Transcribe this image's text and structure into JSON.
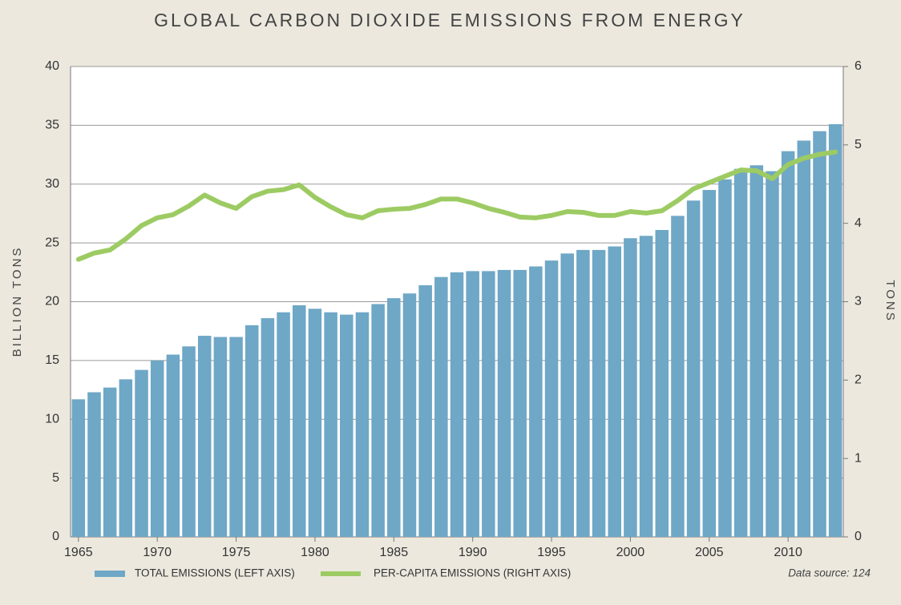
{
  "chart_data": {
    "type": "bar",
    "title": "GLOBAL CARBON DIOXIDE EMISSIONS FROM ENERGY",
    "y_label": "BILLION TONS",
    "y2_label": "TONS",
    "source": "Data source: 124",
    "x": [
      1965,
      1966,
      1967,
      1968,
      1969,
      1970,
      1971,
      1972,
      1973,
      1974,
      1975,
      1976,
      1977,
      1978,
      1979,
      1980,
      1981,
      1982,
      1983,
      1984,
      1985,
      1986,
      1987,
      1988,
      1989,
      1990,
      1991,
      1992,
      1993,
      1994,
      1995,
      1996,
      1997,
      1998,
      1999,
      2000,
      2001,
      2002,
      2003,
      2004,
      2005,
      2006,
      2007,
      2008,
      2009,
      2010,
      2011,
      2012,
      2013
    ],
    "xlim": [
      1964.5,
      2013.5
    ],
    "xticks": [
      1965,
      1970,
      1975,
      1980,
      1985,
      1990,
      1995,
      2000,
      2005,
      2010
    ],
    "ylim": [
      0,
      40
    ],
    "yticks": [
      0,
      5,
      10,
      15,
      20,
      25,
      30,
      35,
      40
    ],
    "y2lim": [
      0,
      6
    ],
    "y2ticks": [
      0,
      1,
      2,
      3,
      4,
      5,
      6
    ],
    "grid": true,
    "legend": "bottom",
    "series": [
      {
        "name": "TOTAL EMISSIONS (LEFT AXIS)",
        "type": "bar",
        "color": "#6fa7c6",
        "values": [
          11.7,
          12.3,
          12.7,
          13.4,
          14.2,
          15.0,
          15.5,
          16.2,
          17.1,
          17.0,
          17.0,
          18.0,
          18.6,
          19.1,
          19.7,
          19.4,
          19.1,
          18.9,
          19.1,
          19.8,
          20.3,
          20.7,
          21.4,
          22.1,
          22.5,
          22.6,
          22.6,
          22.7,
          22.7,
          23.0,
          23.5,
          24.1,
          24.4,
          24.4,
          24.7,
          25.4,
          25.6,
          26.1,
          27.3,
          28.6,
          29.5,
          30.4,
          31.3,
          31.6,
          31.1,
          32.8,
          33.7,
          34.5,
          35.1
        ]
      },
      {
        "name": "PER-CAPITA EMISSIONS (RIGHT AXIS)",
        "type": "line",
        "axis": "y2",
        "color": "#9dcb63",
        "values": [
          3.54,
          3.62,
          3.66,
          3.8,
          3.97,
          4.07,
          4.11,
          4.22,
          4.36,
          4.26,
          4.19,
          4.34,
          4.41,
          4.43,
          4.49,
          4.33,
          4.21,
          4.11,
          4.07,
          4.16,
          4.18,
          4.19,
          4.24,
          4.31,
          4.31,
          4.26,
          4.19,
          4.14,
          4.08,
          4.07,
          4.1,
          4.15,
          4.14,
          4.1,
          4.1,
          4.15,
          4.13,
          4.16,
          4.29,
          4.44,
          4.52,
          4.6,
          4.68,
          4.67,
          4.57,
          4.75,
          4.83,
          4.88,
          4.91
        ]
      }
    ]
  }
}
